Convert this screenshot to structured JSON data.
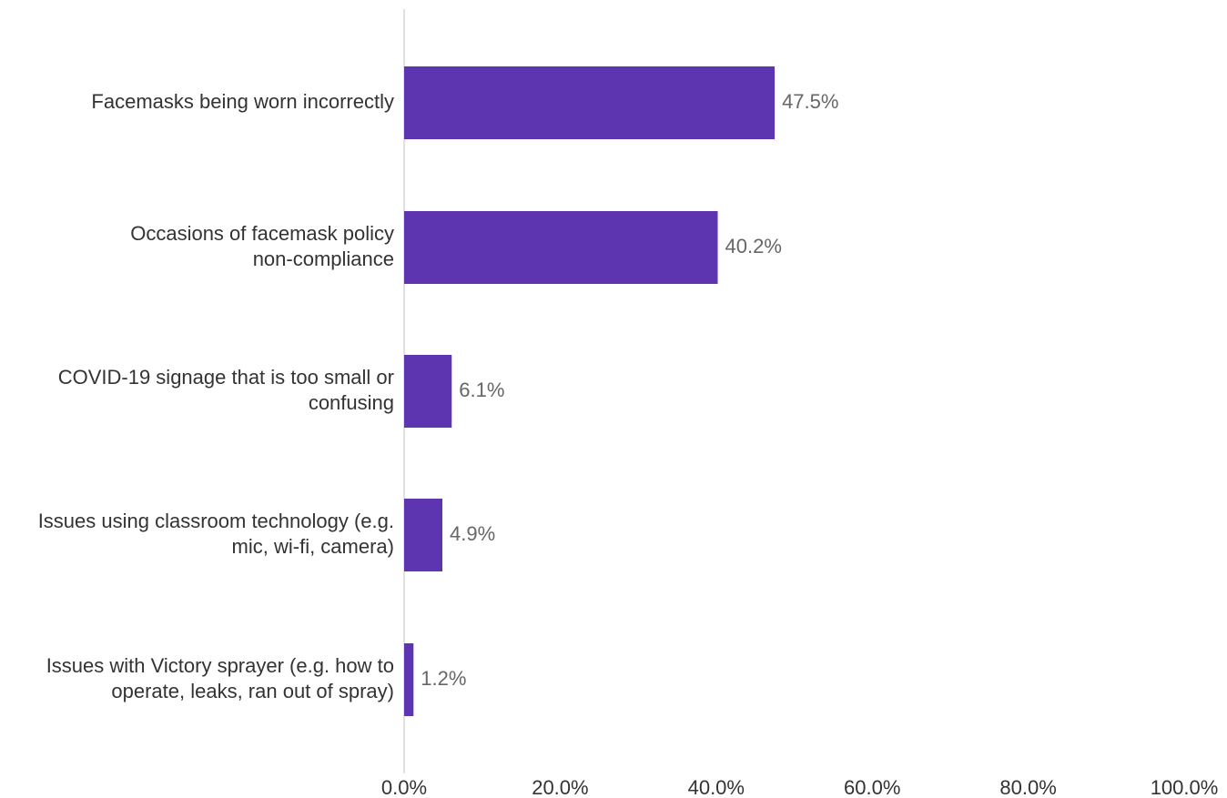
{
  "chart_data": {
    "type": "bar",
    "orientation": "horizontal",
    "categories": [
      "Facemasks being worn incorrectly",
      "Occasions of facemask policy non-compliance",
      "COVID-19 signage that is too small or confusing",
      "Issues using classroom technology (e.g. mic, wi-fi, camera)",
      "Issues with Victory sprayer (e.g. how to operate, leaks, ran out of spray)"
    ],
    "category_label_lines": [
      [
        "Facemasks being worn incorrectly"
      ],
      [
        "Occasions of facemask policy",
        "non-compliance"
      ],
      [
        "COVID-19 signage that is too small or",
        "confusing"
      ],
      [
        "Issues using classroom technology (e.g.",
        "mic, wi-fi, camera)"
      ],
      [
        "Issues with Victory sprayer (e.g. how to",
        "operate, leaks, ran out of spray)"
      ]
    ],
    "values": [
      47.5,
      40.2,
      6.1,
      4.9,
      1.2
    ],
    "data_labels": [
      "47.5%",
      "40.2%",
      "6.1%",
      "4.9%",
      "1.2%"
    ],
    "x_ticks": [
      0,
      20,
      40,
      60,
      80,
      100
    ],
    "x_tick_labels": [
      "0.0%",
      "20.0%",
      "40.0%",
      "60.0%",
      "80.0%",
      "100.0%"
    ],
    "xlim": [
      0,
      100
    ],
    "title": "",
    "xlabel": "",
    "ylabel": "",
    "grid": false,
    "legend": "none",
    "colors": {
      "bar": "#5e35b1",
      "axis_line": "#e0e0e0",
      "category_text": "#333333",
      "value_text": "#666666"
    }
  }
}
